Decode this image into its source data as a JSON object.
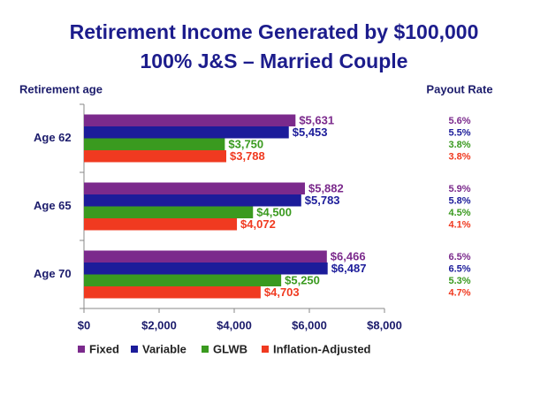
{
  "chart_data": {
    "type": "bar",
    "orientation": "horizontal",
    "title": "Retirement Income Generated by $100,000",
    "subtitle": "100% J&S – Married Couple",
    "y_label": "Retirement age",
    "side_header": "Payout Rate",
    "categories": [
      "Age 62",
      "Age 65",
      "Age 70"
    ],
    "series": [
      {
        "name": "Fixed",
        "color": "#7b2a8c",
        "values": [
          5631,
          5882,
          6466
        ],
        "value_labels": [
          "$5,631",
          "$5,882",
          "$6,466"
        ],
        "payout_labels": [
          "5.6%",
          "5.9%",
          "6.5%"
        ]
      },
      {
        "name": "Variable",
        "color": "#1c1c9a",
        "values": [
          5453,
          5783,
          6487
        ],
        "value_labels": [
          "$5,453",
          "$5,783",
          "$6,487"
        ],
        "payout_labels": [
          "5.5%",
          "5.8%",
          "6.5%"
        ]
      },
      {
        "name": "GLWB",
        "color": "#3a9a1f",
        "values": [
          3750,
          4500,
          5250
        ],
        "value_labels": [
          "$3,750",
          "$4,500",
          "$5,250"
        ],
        "payout_labels": [
          "3.8%",
          "4.5%",
          "5.3%"
        ]
      },
      {
        "name": "Inflation-Adjusted",
        "color": "#f03a20",
        "values": [
          3788,
          4072,
          4703
        ],
        "value_labels": [
          "$3,788",
          "$4,072",
          "$4,703"
        ],
        "payout_labels": [
          "3.8%",
          "4.1%",
          "4.7%"
        ]
      }
    ],
    "xlim": [
      0,
      8000
    ],
    "xticks": [
      {
        "value": 0,
        "label": "$0"
      },
      {
        "value": 2000,
        "label": "$2,000"
      },
      {
        "value": 4000,
        "label": "$4,000"
      },
      {
        "value": 6000,
        "label": "$6,000"
      },
      {
        "value": 8000,
        "label": "$8,000"
      }
    ],
    "grid": false
  }
}
